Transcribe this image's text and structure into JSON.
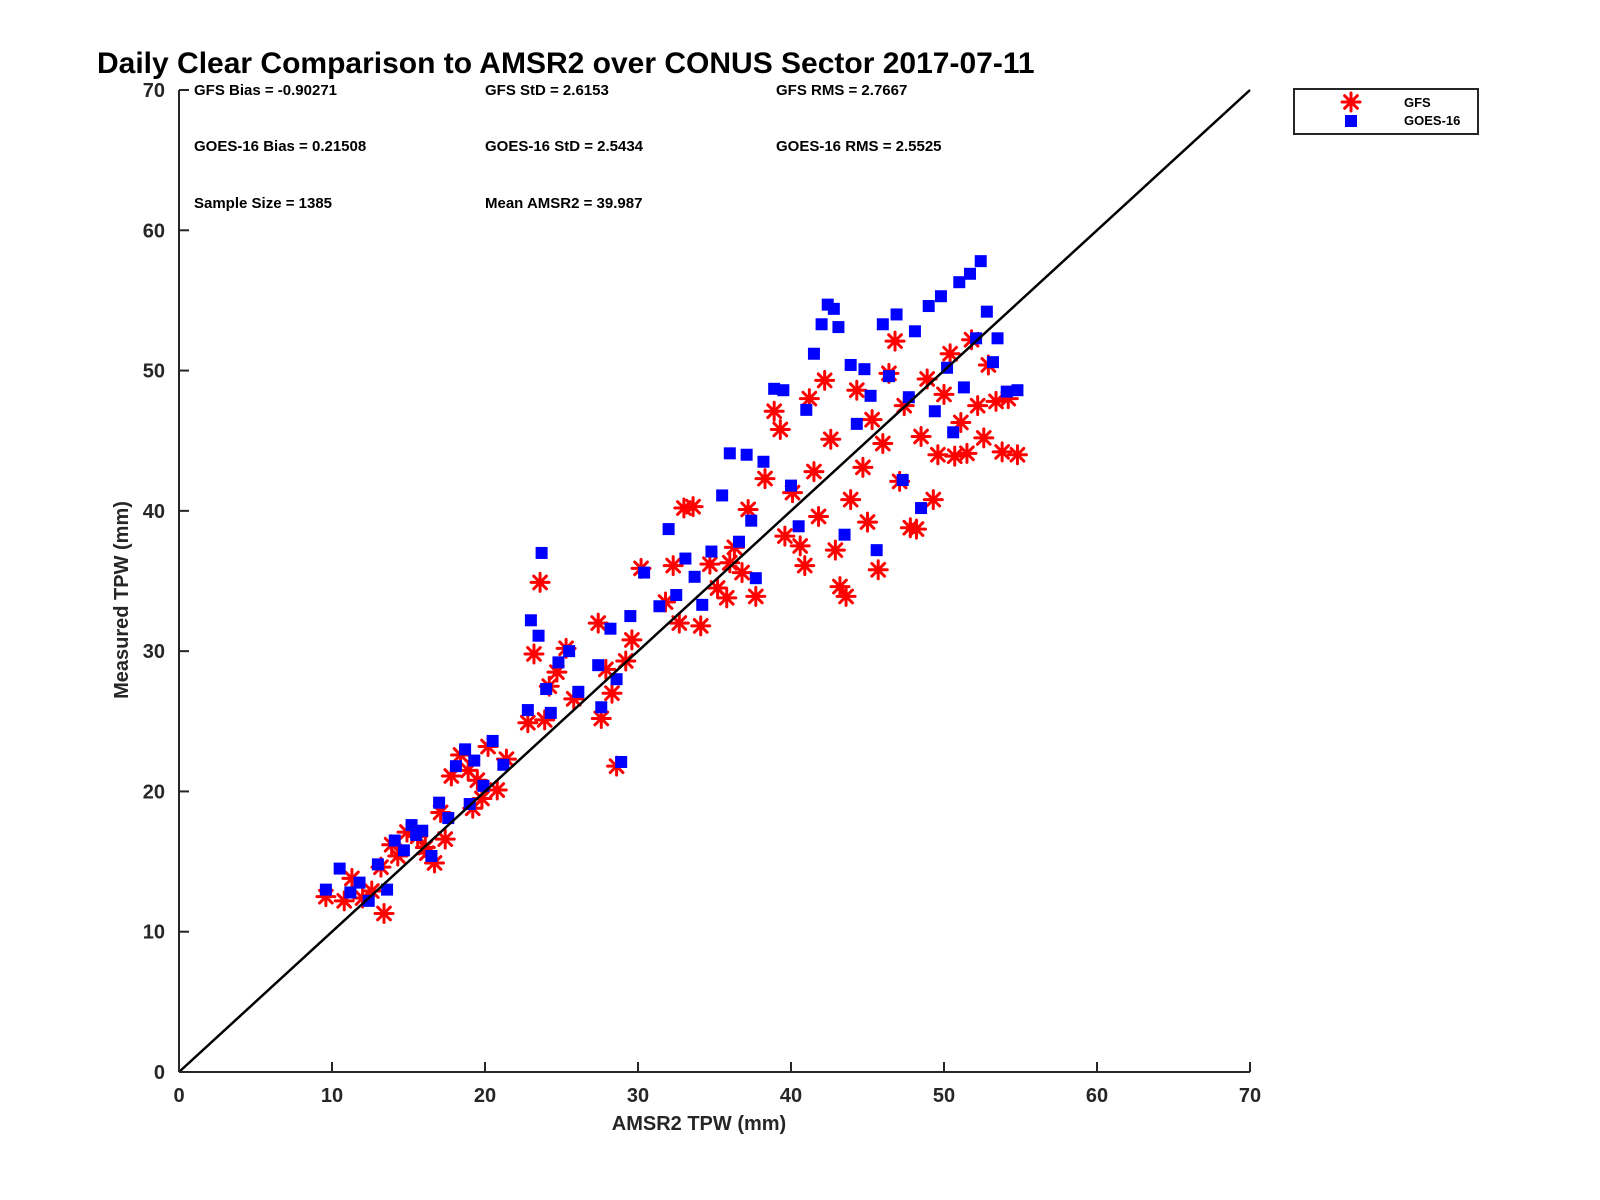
{
  "chart_data": {
    "type": "scatter",
    "title": "Daily Clear Comparison to AMSR2 over CONUS Sector 2017-07-11",
    "xlabel": "AMSR2 TPW (mm)",
    "ylabel": "Measured TPW (mm)",
    "xlim": [
      0,
      70
    ],
    "ylim": [
      0,
      70
    ],
    "xticks": [
      0,
      10,
      20,
      30,
      40,
      50,
      60,
      70
    ],
    "yticks": [
      0,
      10,
      20,
      30,
      40,
      50,
      60,
      70
    ],
    "grid": false,
    "legend_position": "outside-top-right",
    "reference_line": {
      "x": [
        0,
        70
      ],
      "y": [
        0,
        70
      ],
      "color": "#000000"
    },
    "stats": [
      "GFS Bias = -0.90271",
      "GFS StD = 2.6153",
      "GFS RMS = 2.7667",
      "GOES-16 Bias = 0.21508",
      "GOES-16 StD = 2.5434",
      "GOES-16 RMS = 2.5525",
      "Sample Size = 1385",
      "Mean AMSR2 = 39.987"
    ],
    "series": [
      {
        "name": "GFS",
        "marker": "asterisk",
        "color": "#ff0000",
        "points": [
          [
            9.6,
            12.5
          ],
          [
            10.8,
            12.2
          ],
          [
            11.3,
            13.8
          ],
          [
            12,
            12.4
          ],
          [
            12.6,
            12.9
          ],
          [
            13.2,
            14.6
          ],
          [
            13.4,
            11.3
          ],
          [
            13.9,
            16.2
          ],
          [
            14.3,
            15.4
          ],
          [
            14.9,
            17.1
          ],
          [
            15.6,
            16.8
          ],
          [
            16.2,
            15.6
          ],
          [
            16.7,
            14.9
          ],
          [
            17.1,
            18.5
          ],
          [
            17.4,
            16.6
          ],
          [
            17.8,
            21.1
          ],
          [
            18.4,
            22.6
          ],
          [
            18.9,
            21.5
          ],
          [
            19.2,
            18.8
          ],
          [
            19.8,
            19.5
          ],
          [
            20.2,
            23.2
          ],
          [
            20.8,
            20.1
          ],
          [
            21.4,
            22.3
          ],
          [
            22.8,
            24.9
          ],
          [
            23.2,
            29.8
          ],
          [
            23.6,
            34.9
          ],
          [
            23.9,
            25.1
          ],
          [
            24.2,
            27.5
          ],
          [
            24.7,
            28.5
          ],
          [
            25.3,
            30.2
          ],
          [
            25.8,
            26.6
          ],
          [
            27.4,
            32
          ],
          [
            27.6,
            25.2
          ],
          [
            27.9,
            28.7
          ],
          [
            28.3,
            27
          ],
          [
            28.6,
            21.8
          ],
          [
            29.2,
            29.3
          ],
          [
            29.6,
            30.8
          ],
          [
            30.2,
            35.9
          ],
          [
            31.8,
            33.5
          ],
          [
            32.3,
            36.1
          ],
          [
            32.7,
            32
          ],
          [
            33,
            40.2
          ],
          [
            33.6,
            40.3
          ],
          [
            34.1,
            31.8
          ],
          [
            34.7,
            36.2
          ],
          [
            35.2,
            34.5
          ],
          [
            35.8,
            33.8
          ],
          [
            36.3,
            37.4
          ],
          [
            36.8,
            35.6
          ],
          [
            37.2,
            40.1
          ],
          [
            37.7,
            33.9
          ],
          [
            38.3,
            42.3
          ],
          [
            38.9,
            47.1
          ],
          [
            39.3,
            45.8
          ],
          [
            39.6,
            38.2
          ],
          [
            40.1,
            41.3
          ],
          [
            40.6,
            37.5
          ],
          [
            40.9,
            36.1
          ],
          [
            41.2,
            48
          ],
          [
            41.5,
            42.8
          ],
          [
            41.8,
            39.6
          ],
          [
            42.2,
            49.3
          ],
          [
            42.6,
            45.1
          ],
          [
            42.9,
            37.2
          ],
          [
            43.2,
            34.6
          ],
          [
            43.6,
            33.9
          ],
          [
            43.9,
            40.8
          ],
          [
            44.3,
            48.6
          ],
          [
            44.7,
            43.1
          ],
          [
            45,
            39.2
          ],
          [
            45.3,
            46.5
          ],
          [
            45.7,
            35.8
          ],
          [
            46,
            44.8
          ],
          [
            46.4,
            49.8
          ],
          [
            46.8,
            52.1
          ],
          [
            47.1,
            42.1
          ],
          [
            47.4,
            47.5
          ],
          [
            47.8,
            38.8
          ],
          [
            48.2,
            38.7
          ],
          [
            48.5,
            45.3
          ],
          [
            48.9,
            49.4
          ],
          [
            49.3,
            40.8
          ],
          [
            49.6,
            44
          ],
          [
            50,
            48.3
          ],
          [
            50.4,
            51.2
          ],
          [
            50.7,
            43.9
          ],
          [
            51.1,
            46.3
          ],
          [
            51.5,
            44.1
          ],
          [
            51.8,
            52.2
          ],
          [
            52.2,
            47.5
          ],
          [
            52.6,
            45.2
          ],
          [
            52.9,
            50.4
          ],
          [
            53.4,
            47.8
          ],
          [
            53.8,
            44.2
          ],
          [
            54.2,
            48
          ],
          [
            54.8,
            44
          ],
          [
            16.1,
            16
          ],
          [
            19.5,
            20.8
          ],
          [
            36,
            36.3
          ]
        ]
      },
      {
        "name": "GOES-16",
        "marker": "square",
        "color": "#0000ff",
        "points": [
          [
            9.6,
            13
          ],
          [
            10.5,
            14.5
          ],
          [
            11.2,
            12.8
          ],
          [
            11.8,
            13.5
          ],
          [
            12.4,
            12.2
          ],
          [
            13,
            14.8
          ],
          [
            13.6,
            13
          ],
          [
            14.1,
            16.5
          ],
          [
            14.7,
            15.8
          ],
          [
            15.2,
            17.6
          ],
          [
            15.9,
            17.2
          ],
          [
            16.5,
            15.4
          ],
          [
            17,
            19.2
          ],
          [
            17.6,
            18.1
          ],
          [
            18.1,
            21.8
          ],
          [
            18.7,
            23
          ],
          [
            19.3,
            22.2
          ],
          [
            19.9,
            20.4
          ],
          [
            20.5,
            23.6
          ],
          [
            21.2,
            21.9
          ],
          [
            22.8,
            25.8
          ],
          [
            23,
            32.2
          ],
          [
            23.5,
            31.1
          ],
          [
            23.7,
            37
          ],
          [
            24,
            27.3
          ],
          [
            24.3,
            25.6
          ],
          [
            24.8,
            29.2
          ],
          [
            25.5,
            30
          ],
          [
            26.1,
            27.1
          ],
          [
            27.4,
            29
          ],
          [
            27.6,
            26
          ],
          [
            28.2,
            31.6
          ],
          [
            28.6,
            28
          ],
          [
            28.9,
            22.1
          ],
          [
            29.5,
            32.5
          ],
          [
            30.4,
            35.6
          ],
          [
            31.4,
            33.2
          ],
          [
            32,
            38.7
          ],
          [
            32.5,
            34
          ],
          [
            33.1,
            36.6
          ],
          [
            33.7,
            35.3
          ],
          [
            34.2,
            33.3
          ],
          [
            34.8,
            37.1
          ],
          [
            35.5,
            41.1
          ],
          [
            36,
            44.1
          ],
          [
            36.6,
            37.8
          ],
          [
            37.1,
            44
          ],
          [
            37.7,
            35.2
          ],
          [
            38.2,
            43.5
          ],
          [
            38.9,
            48.7
          ],
          [
            39.5,
            48.6
          ],
          [
            40,
            41.8
          ],
          [
            40.5,
            38.9
          ],
          [
            41,
            47.2
          ],
          [
            41.5,
            51.2
          ],
          [
            42,
            53.3
          ],
          [
            42.4,
            54.7
          ],
          [
            42.8,
            54.4
          ],
          [
            43.1,
            53.1
          ],
          [
            43.5,
            38.3
          ],
          [
            43.9,
            50.4
          ],
          [
            44.3,
            46.2
          ],
          [
            44.8,
            50.1
          ],
          [
            45.2,
            48.2
          ],
          [
            45.6,
            37.2
          ],
          [
            46,
            53.3
          ],
          [
            46.4,
            49.6
          ],
          [
            46.9,
            54
          ],
          [
            47.3,
            42.2
          ],
          [
            47.7,
            48.1
          ],
          [
            48.1,
            52.8
          ],
          [
            48.5,
            40.2
          ],
          [
            49,
            54.6
          ],
          [
            49.4,
            47.1
          ],
          [
            49.8,
            55.3
          ],
          [
            50.2,
            50.2
          ],
          [
            50.6,
            45.6
          ],
          [
            51,
            56.3
          ],
          [
            51.3,
            48.8
          ],
          [
            51.7,
            56.9
          ],
          [
            52.1,
            52.3
          ],
          [
            52.4,
            57.8
          ],
          [
            52.8,
            54.2
          ],
          [
            53.2,
            50.6
          ],
          [
            53.5,
            52.3
          ],
          [
            54.1,
            48.5
          ],
          [
            54.8,
            48.6
          ],
          [
            15.5,
            16.9
          ],
          [
            19,
            19.1
          ],
          [
            37.4,
            39.3
          ]
        ]
      }
    ]
  }
}
